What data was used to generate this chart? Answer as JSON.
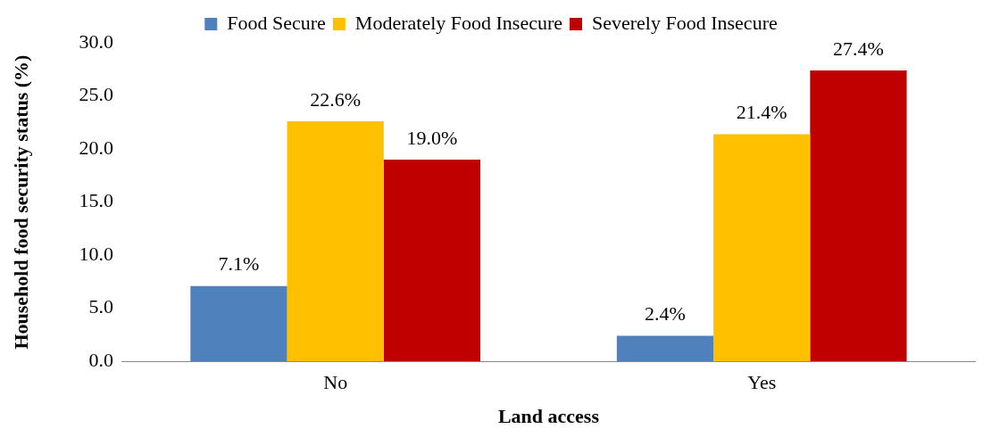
{
  "chart_data": {
    "type": "bar",
    "xlabel": "Land access",
    "ylabel": "Household food security status (%)",
    "categories": [
      "No",
      "Yes"
    ],
    "series": [
      {
        "name": "Food Secure",
        "color": "#4f81bd",
        "values": [
          7.1,
          2.4
        ],
        "value_labels": [
          "7.1%",
          "2.4%"
        ]
      },
      {
        "name": "Moderately Food Insecure",
        "color": "#ffc000",
        "values": [
          22.6,
          21.4
        ],
        "value_labels": [
          "22.6%",
          "21.4%"
        ]
      },
      {
        "name": "Severely Food Insecure",
        "color": "#c00000",
        "values": [
          19.0,
          27.4
        ],
        "value_labels": [
          "19.0%",
          "27.4%"
        ]
      }
    ],
    "ylim": [
      0,
      30
    ],
    "yticks": [
      {
        "value": 0,
        "label": "0.0"
      },
      {
        "value": 5,
        "label": "5.0"
      },
      {
        "value": 10,
        "label": "10.0"
      },
      {
        "value": 15,
        "label": "15.0"
      },
      {
        "value": 20,
        "label": "20.0"
      },
      {
        "value": 25,
        "label": "25.0"
      },
      {
        "value": 30,
        "label": "30.0"
      }
    ],
    "grid": false,
    "legend": "top"
  }
}
